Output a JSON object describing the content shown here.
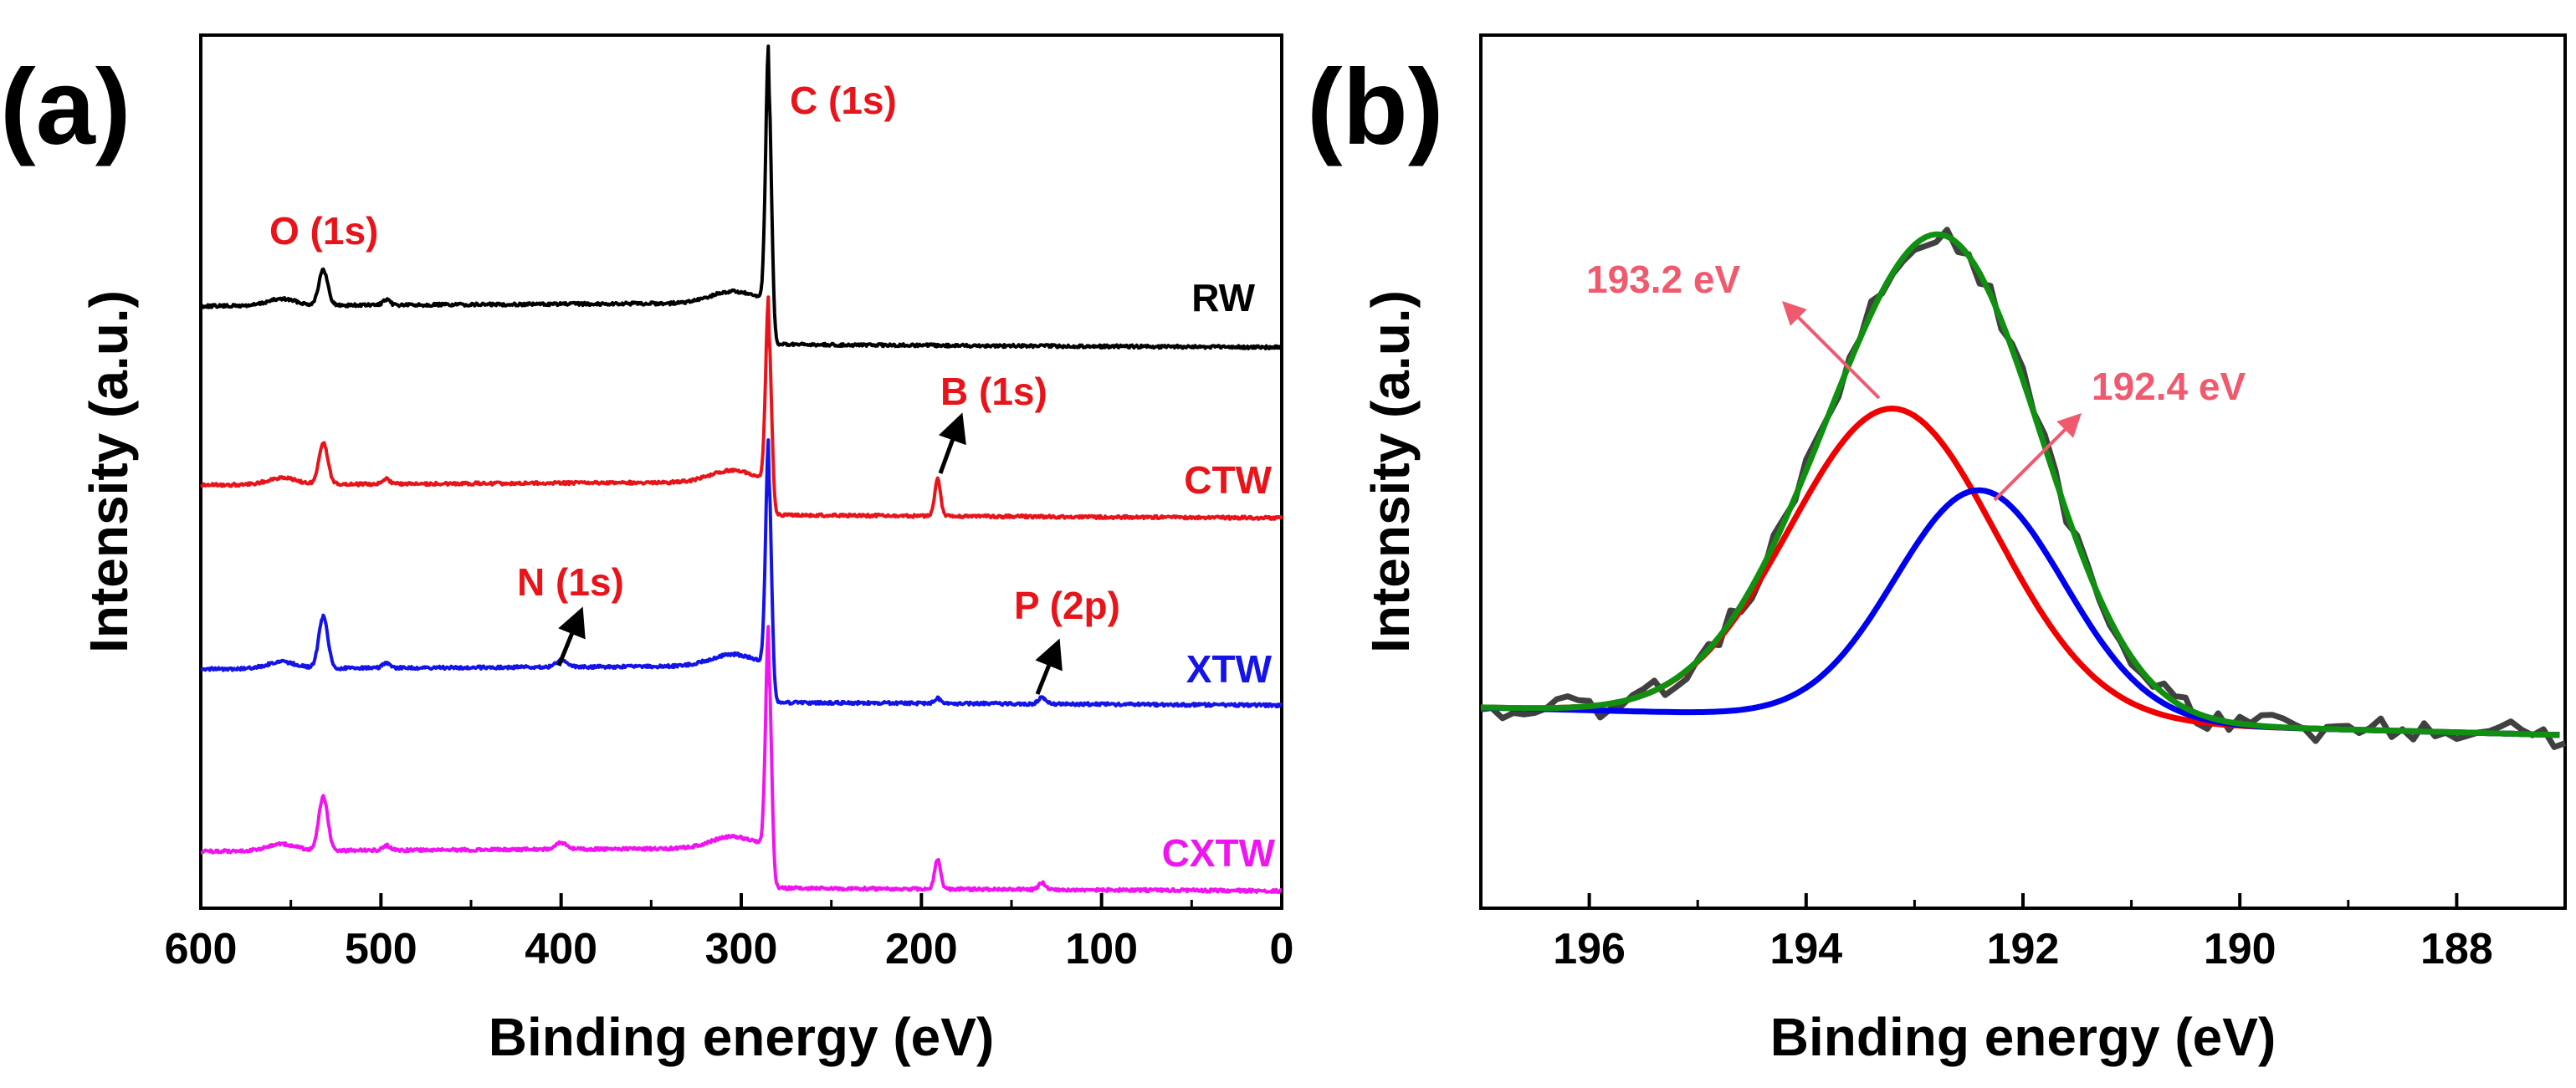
{
  "chart_data": [
    {
      "panel": "(a)",
      "type": "line",
      "xlabel": "Binding energy (eV)",
      "ylabel": "Intensity (a.u.)",
      "xlim": [
        600,
        0
      ],
      "x_reversed": true,
      "xticks": [
        600,
        500,
        400,
        300,
        200,
        100,
        0
      ],
      "y_ticks_shown": false,
      "grid": false,
      "series": [
        {
          "name": "RW",
          "color": "#000000",
          "peaks": [
            "O (1s)",
            "C (1s)"
          ]
        },
        {
          "name": "CTW",
          "color": "#e8141a",
          "peaks": [
            "O (1s)",
            "C (1s)",
            "B (1s)"
          ]
        },
        {
          "name": "XTW",
          "color": "#1414e8",
          "peaks": [
            "O (1s)",
            "C (1s)",
            "N (1s)",
            "P (2p)"
          ]
        },
        {
          "name": "CXTW",
          "color": "#f014f0",
          "peaks": [
            "O (1s)",
            "C (1s)",
            "B (1s)",
            "N (1s)",
            "P (2p)"
          ]
        }
      ],
      "annotations": [
        {
          "text": "O (1s)",
          "x": 532,
          "color": "#e8141a"
        },
        {
          "text": "C (1s)",
          "x": 284.8,
          "color": "#e8141a"
        },
        {
          "text": "B (1s)",
          "x": 191,
          "color": "#e8141a",
          "arrow": true
        },
        {
          "text": "N (1s)",
          "x": 400,
          "color": "#e8141a",
          "arrow": true
        },
        {
          "text": "P (2p)",
          "x": 133,
          "color": "#e8141a",
          "arrow": true
        }
      ]
    },
    {
      "panel": "(b)",
      "type": "line",
      "xlabel": "Binding energy (eV)",
      "ylabel": "Intensity (a.u.)",
      "xlim": [
        197,
        187
      ],
      "x_reversed": true,
      "xticks": [
        196,
        194,
        192,
        190,
        188
      ],
      "y_ticks_shown": false,
      "grid": false,
      "series": [
        {
          "name": "raw",
          "color": "#404040"
        },
        {
          "name": "peak 193.2 eV",
          "color": "#f00000",
          "center": 193.2
        },
        {
          "name": "peak 192.4 eV",
          "color": "#0000f0",
          "center": 192.4
        },
        {
          "name": "envelope",
          "color": "#109010"
        }
      ],
      "annotations": [
        {
          "text": "193.2 eV",
          "color": "#f05a6e"
        },
        {
          "text": "192.4 eV",
          "color": "#f05a6e"
        }
      ]
    }
  ],
  "colors": {
    "annotation_red": "#e8141a",
    "peak_label_pink": "#f05a6e",
    "cxtw_magenta": "#f014f0",
    "xtw_blue": "#1414e8"
  }
}
